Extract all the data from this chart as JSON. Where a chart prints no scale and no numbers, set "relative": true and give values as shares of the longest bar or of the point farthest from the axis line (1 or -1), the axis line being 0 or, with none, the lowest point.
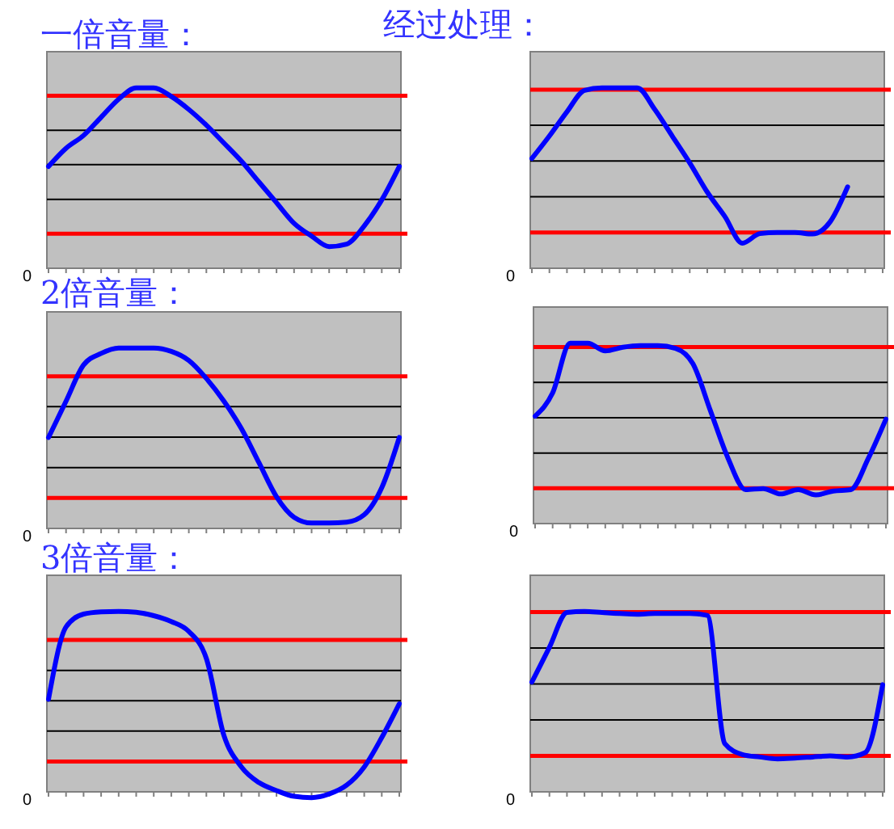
{
  "chart_data": [
    {
      "type": "line",
      "title": "一倍音量：",
      "relative": true,
      "categories": [
        null,
        null,
        null,
        null,
        null,
        null,
        null,
        null,
        null,
        null,
        null,
        null,
        null,
        null,
        null,
        null,
        null,
        null,
        null,
        null,
        null
      ],
      "series": [
        {
          "color": "#0000ff",
          "values": [
            0.564,
            0.665,
            0.736,
            0.837,
            0.937,
            1,
            1,
            0.952,
            0.88,
            0.793,
            0.694,
            0.593,
            0.478,
            0.363,
            0.249,
            0.178,
            0.12,
            0.134,
            0.235,
            0.379,
            0.564
          ]
        }
      ],
      "ref_lines": [
        {
          "axis": "y",
          "value": 0.191,
          "color": "#ff0000"
        },
        {
          "axis": "y",
          "value": 0.382,
          "color": "#000000"
        },
        {
          "axis": "y",
          "value": 0.574,
          "color": "#000000"
        },
        {
          "axis": "y",
          "value": 0.765,
          "color": "#000000"
        },
        {
          "axis": "y",
          "value": 0.956,
          "color": "#ff0000"
        }
      ],
      "annotations": [
        "0"
      ]
    },
    {
      "type": "line",
      "title": "经过处理：",
      "relative": true,
      "categories": [
        null,
        null,
        null,
        null,
        null,
        null,
        null,
        null,
        null,
        null,
        null,
        null,
        null,
        null,
        null,
        null,
        null,
        null,
        null,
        null,
        null
      ],
      "series": [
        {
          "color": "#0000ff",
          "values": [
            0.608,
            0.733,
            0.867,
            0.986,
            1,
            1,
            1,
            0.881,
            0.733,
            0.584,
            0.422,
            0.287,
            0.139,
            0.192,
            0.198,
            0.198,
            0.19,
            0.257,
            0.451,
            null,
            null
          ]
        }
      ],
      "ref_lines": [
        {
          "axis": "y",
          "value": 0.198,
          "color": "#ff0000"
        },
        {
          "axis": "y",
          "value": 0.396,
          "color": "#000000"
        },
        {
          "axis": "y",
          "value": 0.594,
          "color": "#000000"
        },
        {
          "axis": "y",
          "value": 0.792,
          "color": "#000000"
        },
        {
          "axis": "y",
          "value": 0.99,
          "color": "#ff0000"
        }
      ],
      "annotations": [
        "0"
      ]
    },
    {
      "type": "line",
      "title": "2倍音量：",
      "relative": true,
      "categories": [
        null,
        null,
        null,
        null,
        null,
        null,
        null,
        null,
        null,
        null,
        null,
        null,
        null,
        null,
        null,
        null,
        null,
        null,
        null,
        null,
        null
      ],
      "series": [
        {
          "color": "#0000ff",
          "values": [
            0.504,
            0.705,
            0.906,
            0.97,
            1,
            1,
            1,
            0.981,
            0.931,
            0.831,
            0.705,
            0.553,
            0.364,
            0.175,
            0.062,
            0.03,
            0.03,
            0.035,
            0.076,
            0.226,
            0.504
          ]
        }
      ],
      "ref_lines": [
        {
          "axis": "y",
          "value": 0.169,
          "color": "#ff0000"
        },
        {
          "axis": "y",
          "value": 0.337,
          "color": "#000000"
        },
        {
          "axis": "y",
          "value": 0.506,
          "color": "#000000"
        },
        {
          "axis": "y",
          "value": 0.675,
          "color": "#000000"
        },
        {
          "axis": "y",
          "value": 0.843,
          "color": "#ff0000"
        }
      ],
      "annotations": [
        "0"
      ]
    },
    {
      "type": "line",
      "relative": true,
      "categories": [
        null,
        null,
        null,
        null,
        null,
        null,
        null,
        null,
        null,
        null,
        null,
        null,
        null,
        null,
        null,
        null,
        null,
        null,
        null,
        null,
        null
      ],
      "series": [
        {
          "color": "#0000ff",
          "values": [
            0.595,
            0.724,
            1,
            1,
            0.957,
            0.977,
            0.986,
            0.986,
            0.971,
            0.885,
            0.624,
            0.362,
            0.188,
            0.194,
            0.164,
            0.188,
            0.159,
            0.18,
            0.188,
            0.362,
            0.579
          ]
        }
      ],
      "ref_lines": [
        {
          "axis": "y",
          "value": 0.196,
          "color": "#ff0000"
        },
        {
          "axis": "y",
          "value": 0.391,
          "color": "#000000"
        },
        {
          "axis": "y",
          "value": 0.587,
          "color": "#000000"
        },
        {
          "axis": "y",
          "value": 0.783,
          "color": "#000000"
        },
        {
          "axis": "y",
          "value": 0.978,
          "color": "#ff0000"
        }
      ],
      "annotations": [
        "0"
      ]
    },
    {
      "type": "line",
      "title": "3倍音量：",
      "relative": true,
      "categories": [
        null,
        null,
        null,
        null,
        null,
        null,
        null,
        null,
        null,
        null,
        null,
        null,
        null,
        null,
        null,
        null,
        null,
        null,
        null,
        null,
        null
      ],
      "series": [
        {
          "color": "#0000ff",
          "values": [
            0.513,
            0.914,
            0.985,
            0.997,
            1,
            0.995,
            0.976,
            0.944,
            0.889,
            0.739,
            0.313,
            0.138,
            0.051,
            0.007,
            -0.025,
            -0.032,
            -0.012,
            0.037,
            0.138,
            0.301,
            0.488
          ]
        }
      ],
      "ref_lines": [
        {
          "axis": "y",
          "value": 0.168,
          "color": "#ff0000"
        },
        {
          "axis": "y",
          "value": 0.337,
          "color": "#000000"
        },
        {
          "axis": "y",
          "value": 0.505,
          "color": "#000000"
        },
        {
          "axis": "y",
          "value": 0.673,
          "color": "#000000"
        },
        {
          "axis": "y",
          "value": 0.842,
          "color": "#ff0000"
        }
      ],
      "annotations": [
        "0"
      ]
    },
    {
      "type": "line",
      "relative": true,
      "categories": [
        null,
        null,
        null,
        null,
        null,
        null,
        null,
        null,
        null,
        null,
        null,
        null,
        null,
        null,
        null,
        null,
        null,
        null,
        null,
        null,
        null
      ],
      "series": [
        {
          "color": "#0000ff",
          "values": [
            0.608,
            0.801,
            0.994,
            1,
            0.994,
            0.988,
            0.984,
            0.988,
            0.988,
            0.988,
            0.978,
            0.267,
            0.207,
            0.193,
            0.183,
            0.187,
            0.193,
            0.199,
            0.193,
            0.217,
            0.594
          ]
        }
      ],
      "ref_lines": [
        {
          "axis": "y",
          "value": 0.199,
          "color": "#ff0000"
        },
        {
          "axis": "y",
          "value": 0.398,
          "color": "#000000"
        },
        {
          "axis": "y",
          "value": 0.598,
          "color": "#000000"
        },
        {
          "axis": "y",
          "value": 0.797,
          "color": "#000000"
        },
        {
          "axis": "y",
          "value": 0.996,
          "color": "#ff0000"
        }
      ],
      "annotations": [
        "0"
      ]
    }
  ]
}
